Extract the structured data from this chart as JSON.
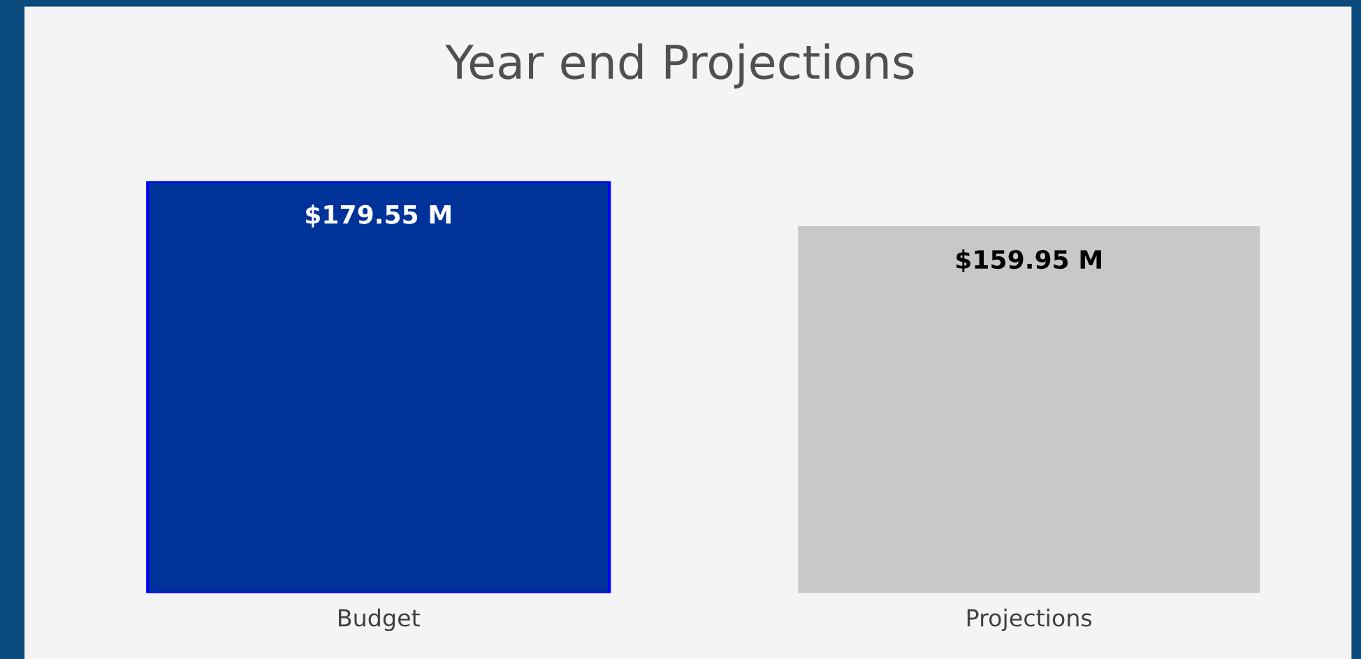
{
  "chart_data": {
    "type": "bar",
    "title": "Year end Projections",
    "categories": [
      "Budget",
      "Projections"
    ],
    "values": [
      179.55,
      159.95
    ],
    "colors": [
      "#003399",
      "#c8c8c8"
    ],
    "value_labels": [
      "$179.55 M",
      "$159.95 M"
    ],
    "grid": false,
    "legend": false
  }
}
